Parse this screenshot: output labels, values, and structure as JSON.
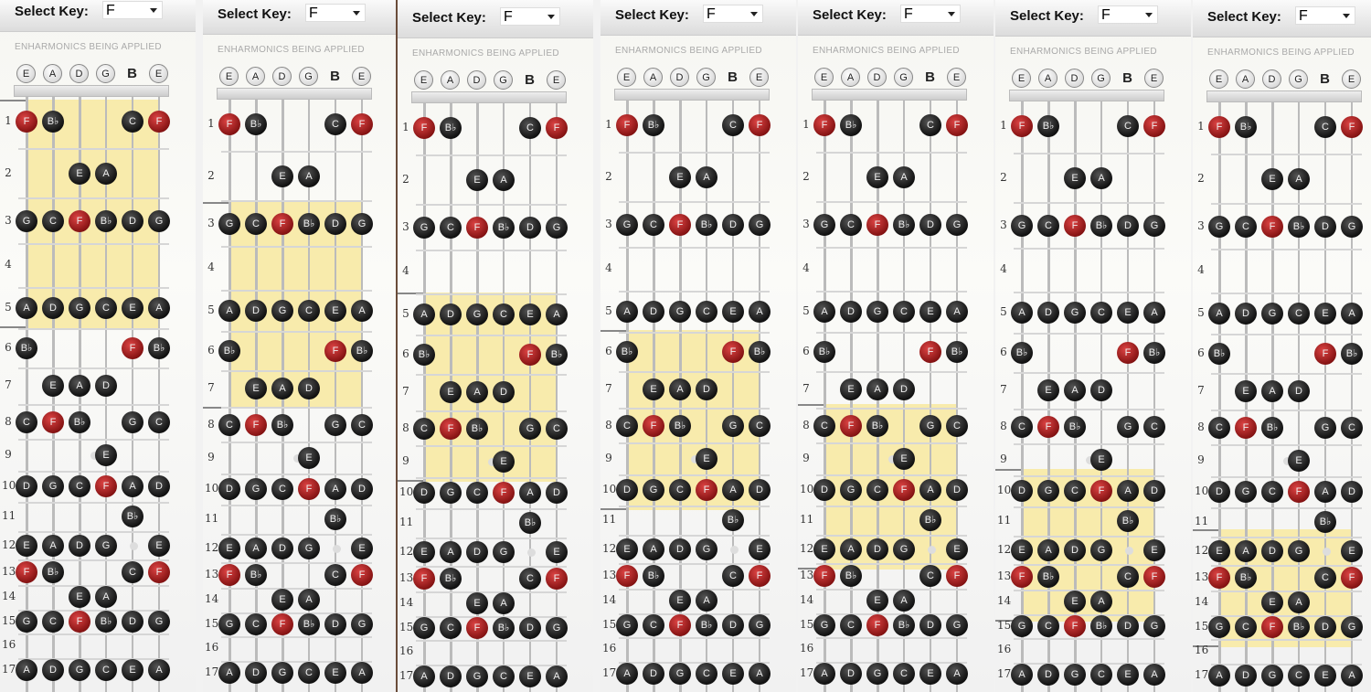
{
  "header": {
    "select_key_label": "Select Key:",
    "enharmonics_label": "ENHARMONICS BEING APPLIED"
  },
  "tuning": [
    "E",
    "A",
    "D",
    "G",
    "B",
    "E"
  ],
  "root_note": "F",
  "colors": {
    "root": "#b22222",
    "note": "#222222",
    "highlight": "#f8eaa8"
  },
  "fret_numbers": [
    "1",
    "2",
    "3",
    "4",
    "5",
    "6",
    "7",
    "8",
    "9",
    "10",
    "11",
    "12",
    "13",
    "14",
    "15",
    "16",
    "17"
  ],
  "fret_notes": [
    [
      "F",
      "Bb",
      "",
      "",
      "C",
      "F"
    ],
    [
      "",
      "",
      "E",
      "A",
      "",
      ""
    ],
    [
      "G",
      "C",
      "F",
      "Bb",
      "D",
      "G"
    ],
    [
      "",
      "",
      "",
      "",
      "",
      ""
    ],
    [
      "A",
      "D",
      "G",
      "C",
      "E",
      "A"
    ],
    [
      "Bb",
      "",
      "",
      "",
      "F",
      "Bb"
    ],
    [
      "",
      "E",
      "A",
      "D",
      "",
      ""
    ],
    [
      "C",
      "F",
      "Bb",
      "",
      "G",
      "C"
    ],
    [
      "",
      "",
      "",
      "E",
      "",
      ""
    ],
    [
      "D",
      "G",
      "C",
      "F",
      "A",
      "D"
    ],
    [
      "",
      "",
      "",
      "",
      "Bb",
      ""
    ],
    [
      "E",
      "A",
      "D",
      "G",
      "",
      "E"
    ],
    [
      "F",
      "Bb",
      "",
      "",
      "C",
      "F"
    ],
    [
      "",
      "",
      "E",
      "A",
      "",
      ""
    ],
    [
      "G",
      "C",
      "F",
      "Bb",
      "D",
      "G"
    ],
    [
      "",
      "",
      "",
      "",
      "",
      ""
    ],
    [
      "A",
      "D",
      "G",
      "C",
      "E",
      "A"
    ]
  ],
  "panels": [
    {
      "key": "F",
      "highlight_frets": [
        1,
        5
      ]
    },
    {
      "key": "F",
      "highlight_frets": [
        3,
        7
      ]
    },
    {
      "key": "F",
      "highlight_frets": [
        5,
        9
      ]
    },
    {
      "key": "F",
      "highlight_frets": [
        6,
        10
      ]
    },
    {
      "key": "F",
      "highlight_frets": [
        8,
        12
      ]
    },
    {
      "key": "F",
      "highlight_frets": [
        10,
        14
      ]
    },
    {
      "key": "F",
      "highlight_frets": [
        12,
        15
      ]
    }
  ]
}
